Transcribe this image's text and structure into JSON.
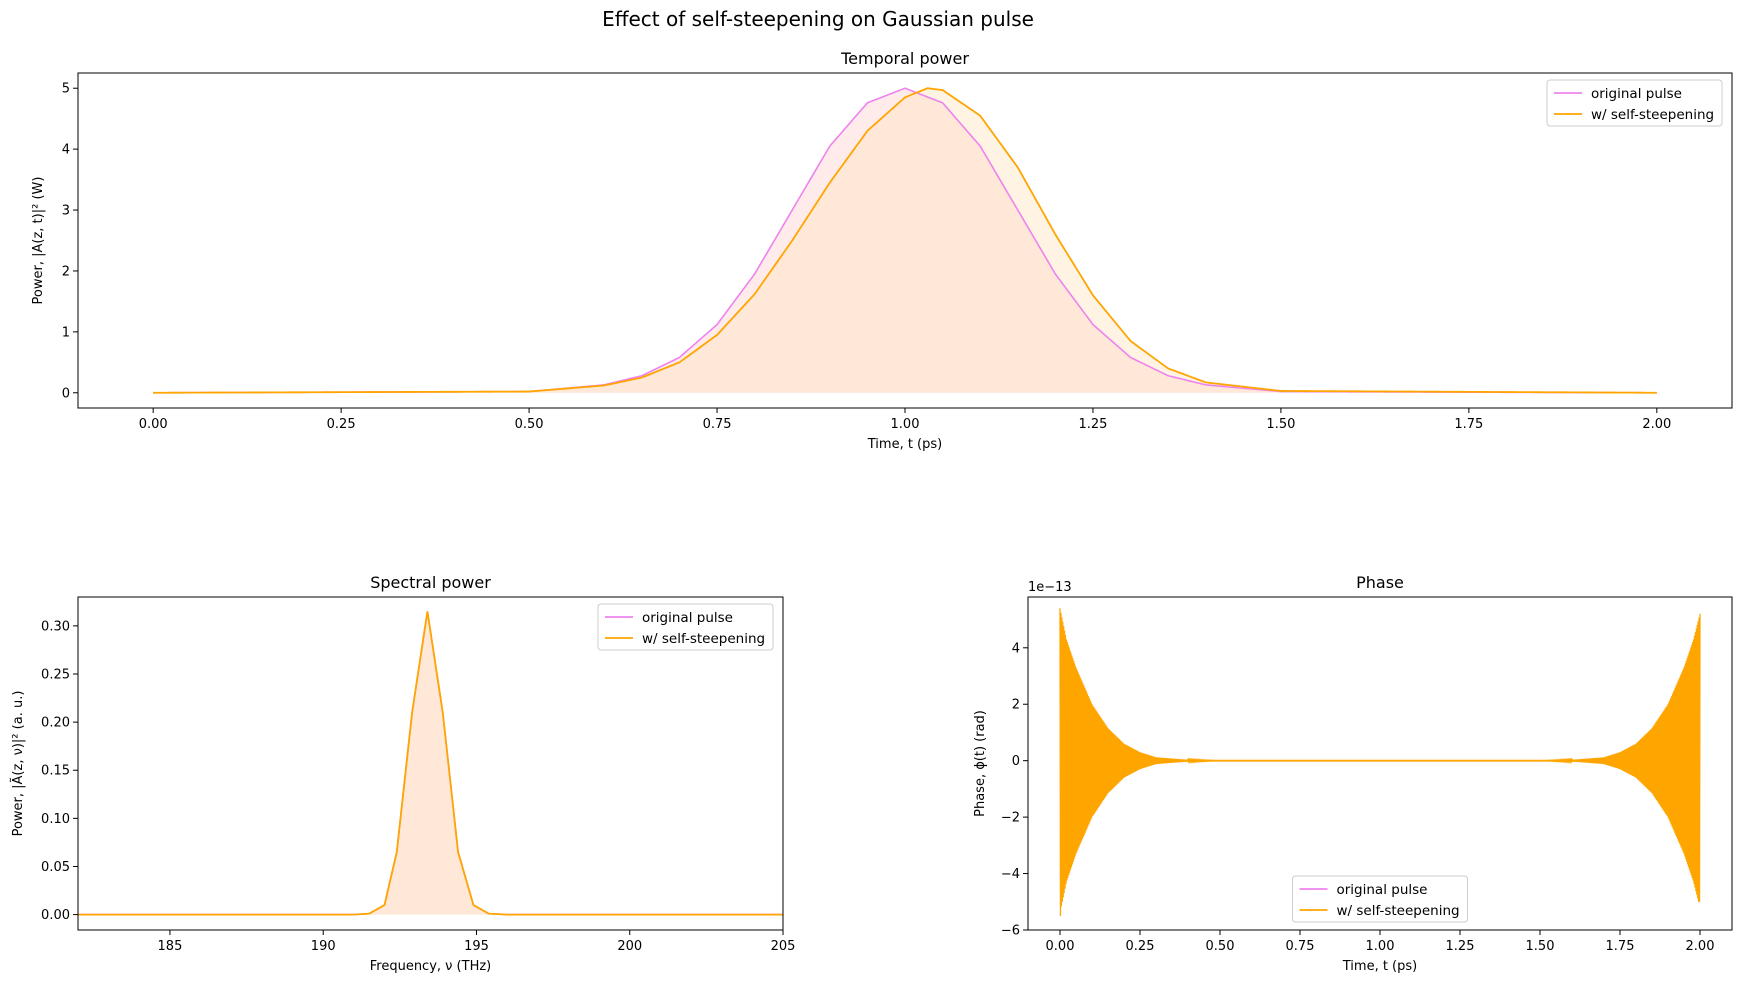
{
  "figure": {
    "title": "Effect of self-steepening on Gaussian pulse"
  },
  "colors": {
    "original": "#ee82ee",
    "steepened": "#ffa500",
    "fill_original": "#ffe4e1",
    "fill_steepened": "#ffe4c4"
  },
  "legend": {
    "entries": [
      "original pulse",
      "w/ self-steepening"
    ]
  },
  "chart_data": [
    {
      "id": "temporal",
      "type": "line",
      "title": "Temporal power",
      "xlabel": "Time, t (ps)",
      "ylabel": "Power, |A(z, t)|² (W)",
      "xlim": [
        -0.1,
        2.1
      ],
      "ylim": [
        -0.25,
        5.25
      ],
      "xticks": [
        0.0,
        0.25,
        0.5,
        0.75,
        1.0,
        1.25,
        1.5,
        1.75,
        2.0
      ],
      "xtick_labels": [
        "0.00",
        "0.25",
        "0.50",
        "0.75",
        "1.00",
        "1.25",
        "1.50",
        "1.75",
        "2.00"
      ],
      "yticks": [
        0,
        1,
        2,
        3,
        4,
        5
      ],
      "ytick_labels": [
        "0",
        "1",
        "2",
        "3",
        "4",
        "5"
      ],
      "legend_position": "upper right",
      "series": [
        {
          "name": "original pulse",
          "x": [
            0.0,
            0.5,
            0.6,
            0.65,
            0.7,
            0.75,
            0.8,
            0.85,
            0.9,
            0.95,
            1.0,
            1.05,
            1.1,
            1.15,
            1.2,
            1.25,
            1.3,
            1.35,
            1.4,
            1.5,
            2.0
          ],
          "y": [
            0.0,
            0.02,
            0.13,
            0.28,
            0.58,
            1.12,
            1.95,
            3.0,
            4.05,
            4.76,
            5.0,
            4.76,
            4.05,
            3.0,
            1.95,
            1.12,
            0.58,
            0.28,
            0.13,
            0.02,
            0.0
          ]
        },
        {
          "name": "w/ self-steepening",
          "x": [
            0.0,
            0.5,
            0.6,
            0.65,
            0.7,
            0.75,
            0.8,
            0.85,
            0.9,
            0.95,
            1.0,
            1.03,
            1.05,
            1.1,
            1.15,
            1.2,
            1.25,
            1.3,
            1.35,
            1.4,
            1.5,
            2.0
          ],
          "y": [
            0.0,
            0.02,
            0.12,
            0.25,
            0.5,
            0.95,
            1.62,
            2.5,
            3.45,
            4.3,
            4.85,
            5.0,
            4.97,
            4.55,
            3.7,
            2.6,
            1.6,
            0.85,
            0.4,
            0.17,
            0.03,
            0.0
          ]
        }
      ]
    },
    {
      "id": "spectral",
      "type": "line",
      "title": "Spectral power",
      "xlabel": "Frequency, ν (THz)",
      "ylabel": "Power, |Ã(z, ν)|² (a. u.)",
      "xlim": [
        182,
        205
      ],
      "ylim": [
        -0.016,
        0.33
      ],
      "xticks": [
        185,
        190,
        195,
        200,
        205
      ],
      "xtick_labels": [
        "185",
        "190",
        "195",
        "200",
        "205"
      ],
      "yticks": [
        0.0,
        0.05,
        0.1,
        0.15,
        0.2,
        0.25,
        0.3
      ],
      "ytick_labels": [
        "0.00",
        "0.05",
        "0.10",
        "0.15",
        "0.20",
        "0.25",
        "0.30"
      ],
      "legend_position": "upper right",
      "series": [
        {
          "name": "original pulse",
          "x": [
            182,
            191.0,
            191.5,
            192.0,
            192.4,
            192.9,
            193.4,
            193.9,
            194.4,
            194.9,
            195.4,
            196.0,
            205
          ],
          "y": [
            0.0,
            0.0,
            0.001,
            0.01,
            0.065,
            0.21,
            0.315,
            0.21,
            0.065,
            0.01,
            0.001,
            0.0,
            0.0
          ]
        },
        {
          "name": "w/ self-steepening",
          "x": [
            182,
            191.0,
            191.5,
            192.0,
            192.4,
            192.9,
            193.4,
            193.9,
            194.4,
            194.9,
            195.4,
            196.0,
            205
          ],
          "y": [
            0.0,
            0.0,
            0.001,
            0.01,
            0.065,
            0.21,
            0.315,
            0.21,
            0.065,
            0.01,
            0.001,
            0.0,
            0.0
          ]
        }
      ]
    },
    {
      "id": "phase",
      "type": "line",
      "title": "Phase",
      "xlabel": "Time, t (ps)",
      "ylabel": "Phase, ϕ(t) (rad)",
      "offset_label": "1e−13",
      "xlim": [
        -0.1,
        2.1
      ],
      "ylim": [
        -6,
        5.8
      ],
      "xticks": [
        0.0,
        0.25,
        0.5,
        0.75,
        1.0,
        1.25,
        1.5,
        1.75,
        2.0
      ],
      "xtick_labels": [
        "0.00",
        "0.25",
        "0.50",
        "0.75",
        "1.00",
        "1.25",
        "1.50",
        "1.75",
        "2.00"
      ],
      "yticks": [
        -6,
        -4,
        -2,
        0,
        2,
        4
      ],
      "ytick_labels": [
        "−6",
        "−4",
        "−2",
        "0",
        "2",
        "4"
      ],
      "legend_position": "lower center",
      "series": [
        {
          "name": "original pulse",
          "x": [
            0.0,
            2.0
          ],
          "y": [
            0.0,
            0.0
          ]
        },
        {
          "name": "w/ self-steepening",
          "x": [
            0.0,
            0.02,
            0.05,
            0.1,
            0.15,
            0.2,
            0.25,
            0.3,
            0.4,
            0.5,
            1.0,
            1.5,
            1.6,
            1.7,
            1.75,
            1.8,
            1.85,
            1.9,
            1.95,
            1.98,
            2.0
          ],
          "envelope": [
            5.4,
            4.3,
            3.3,
            2.0,
            1.15,
            0.6,
            0.3,
            0.12,
            0.03,
            0.0,
            0.0,
            0.0,
            0.03,
            0.12,
            0.3,
            0.6,
            1.15,
            2.0,
            3.3,
            4.3,
            5.2
          ],
          "y_min_at_start": -5.5,
          "y_min_at_end": -5.0
        }
      ]
    }
  ]
}
